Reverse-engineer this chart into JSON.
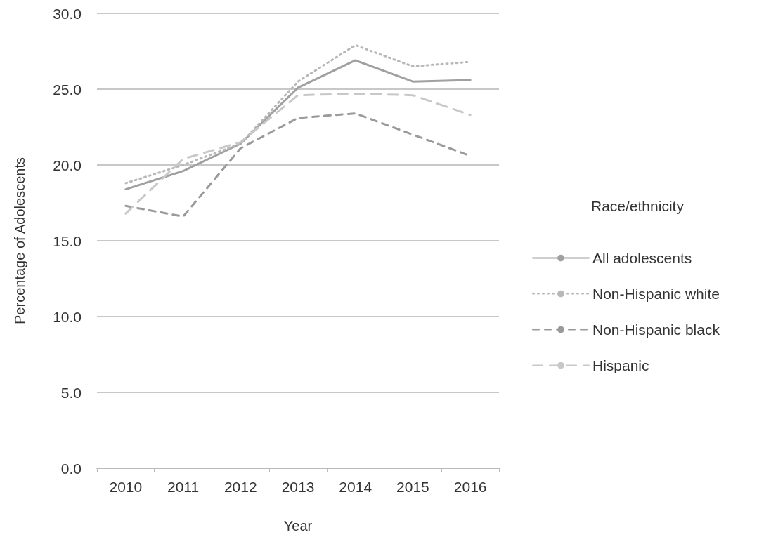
{
  "chart_data": {
    "type": "line",
    "xlabel": "Year",
    "ylabel": "Percentage of Adolescents",
    "legend_title": "Race/ethnicity",
    "categories": [
      "2010",
      "2011",
      "2012",
      "2013",
      "2014",
      "2015",
      "2016"
    ],
    "series": [
      {
        "name": "All adolescents",
        "color": "#a0a0a0",
        "line_style": "solid",
        "values": [
          18.4,
          19.6,
          21.4,
          25.1,
          26.9,
          25.5,
          25.6
        ]
      },
      {
        "name": "Non-Hispanic white",
        "color": "#b8b8b8",
        "line_style": "dotted",
        "values": [
          18.8,
          20.0,
          21.4,
          25.5,
          27.9,
          26.5,
          26.8
        ]
      },
      {
        "name": "Non-Hispanic black",
        "color": "#9a9a9a",
        "line_style": "dashed",
        "values": [
          17.3,
          16.6,
          21.1,
          23.1,
          23.4,
          22.0,
          20.6
        ]
      },
      {
        "name": "Hispanic",
        "color": "#c8c8c8",
        "line_style": "dashed",
        "values": [
          16.8,
          20.4,
          21.5,
          24.6,
          24.7,
          24.6,
          23.3
        ]
      }
    ],
    "ylim": [
      0,
      30
    ],
    "yticks": [
      {
        "value": 0,
        "label": "0.0"
      },
      {
        "value": 5,
        "label": "5.0"
      },
      {
        "value": 10,
        "label": "10.0"
      },
      {
        "value": 15,
        "label": "15.0"
      },
      {
        "value": 20,
        "label": "20.0"
      },
      {
        "value": 25,
        "label": "25.0"
      },
      {
        "value": 30,
        "label": "30.0"
      }
    ],
    "grid": "y",
    "legend": "right",
    "marker": "none"
  }
}
